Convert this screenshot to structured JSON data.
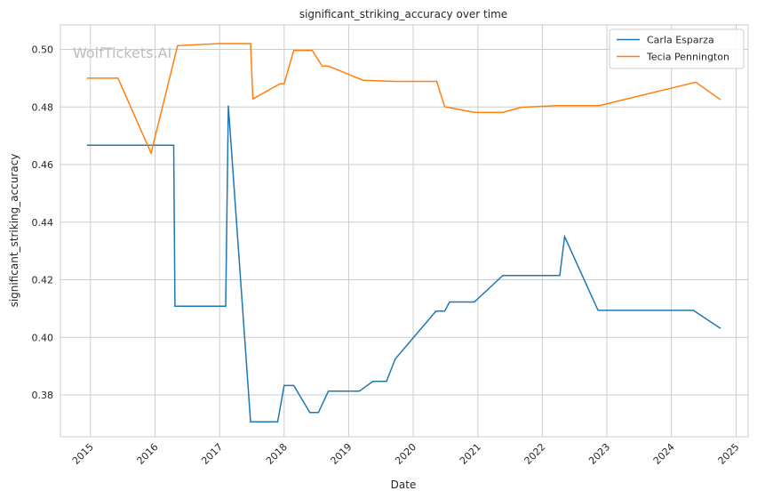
{
  "chart_data": {
    "type": "line",
    "title": "significant_striking_accuracy over time",
    "xlabel": "Date",
    "ylabel": "significant_striking_accuracy",
    "watermark": "WolfTickets.AI",
    "xlim": [
      "2014-07-15",
      "2025-03-10"
    ],
    "ylim": [
      0.3655,
      0.5085
    ],
    "x_ticks": [
      "2015",
      "2016",
      "2017",
      "2018",
      "2019",
      "2020",
      "2021",
      "2022",
      "2023",
      "2024",
      "2025"
    ],
    "y_ticks": [
      "0.38",
      "0.40",
      "0.42",
      "0.44",
      "0.46",
      "0.48",
      "0.50"
    ],
    "grid": true,
    "legend_position": "top-right",
    "series": [
      {
        "name": "Carla Esparza",
        "color": "#1f77b4",
        "points": [
          [
            "2014-12-12",
            0.4667
          ],
          [
            "2016-04-16",
            0.4667
          ],
          [
            "2016-04-23",
            0.4108
          ],
          [
            "2017-02-04",
            0.4108
          ],
          [
            "2017-02-19",
            0.4805
          ],
          [
            "2017-06-25",
            0.3707
          ],
          [
            "2017-11-25",
            0.3707
          ],
          [
            "2018-01-01",
            0.3833
          ],
          [
            "2018-02-24",
            0.3833
          ],
          [
            "2018-05-26",
            0.3739
          ],
          [
            "2018-07-14",
            0.3739
          ],
          [
            "2018-09-08",
            0.3813
          ],
          [
            "2019-03-02",
            0.3813
          ],
          [
            "2019-05-18",
            0.3847
          ],
          [
            "2019-08-03",
            0.3847
          ],
          [
            "2019-09-21",
            0.3925
          ],
          [
            "2020-05-09",
            0.4091
          ],
          [
            "2020-06-27",
            0.4091
          ],
          [
            "2020-07-25",
            0.4123
          ],
          [
            "2020-12-12",
            0.4123
          ],
          [
            "2021-05-22",
            0.4215
          ],
          [
            "2022-04-09",
            0.4215
          ],
          [
            "2022-05-07",
            0.435
          ],
          [
            "2022-11-12",
            0.4094
          ],
          [
            "2024-05-04",
            0.4094
          ],
          [
            "2024-10-05",
            0.4031
          ]
        ]
      },
      {
        "name": "Tecia Pennington",
        "color": "#ff7f0e",
        "points": [
          [
            "2014-12-12",
            0.49
          ],
          [
            "2015-06-06",
            0.49
          ],
          [
            "2015-12-10",
            0.464
          ],
          [
            "2016-05-08",
            0.5013
          ],
          [
            "2017-01-01",
            0.502
          ],
          [
            "2017-06-25",
            0.502
          ],
          [
            "2017-07-08",
            0.4828
          ],
          [
            "2017-12-09",
            0.4881
          ],
          [
            "2018-01-01",
            0.4881
          ],
          [
            "2018-02-24",
            0.4996
          ],
          [
            "2018-06-09",
            0.4996
          ],
          [
            "2018-08-04",
            0.4942
          ],
          [
            "2018-09-08",
            0.4942
          ],
          [
            "2019-03-23",
            0.4893
          ],
          [
            "2019-09-21",
            0.4889
          ],
          [
            "2020-05-13",
            0.4889
          ],
          [
            "2020-06-27",
            0.4801
          ],
          [
            "2020-12-12",
            0.4781
          ],
          [
            "2021-05-22",
            0.4781
          ],
          [
            "2021-09-04",
            0.4799
          ],
          [
            "2022-03-26",
            0.4805
          ],
          [
            "2022-11-19",
            0.4805
          ],
          [
            "2024-05-18",
            0.4886
          ],
          [
            "2024-10-05",
            0.4825
          ]
        ]
      }
    ]
  }
}
